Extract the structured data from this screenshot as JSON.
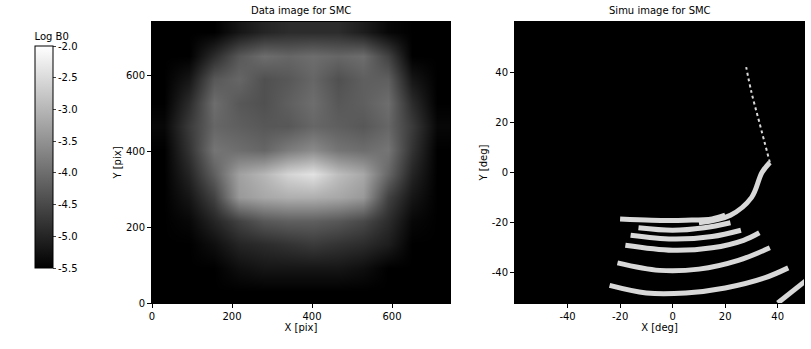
{
  "chart_data": [
    {
      "type": "heatmap",
      "title": "Data image for SMC",
      "x_label": "X [pix]",
      "y_label": "Y [pix]",
      "xlim": [
        0,
        745
      ],
      "ylim": [
        0,
        740
      ],
      "xticks": [
        0,
        200,
        400,
        600
      ],
      "yticks": [
        0,
        200,
        400,
        600
      ],
      "grid": false,
      "x": [
        31,
        93,
        155,
        217,
        279,
        341,
        403,
        465,
        527,
        589,
        651,
        713
      ],
      "y": [
        31,
        93,
        155,
        217,
        279,
        341,
        403,
        465,
        527,
        589,
        651,
        713
      ],
      "z": [
        [
          -5.5,
          -5.5,
          -5.5,
          -5.5,
          -5.5,
          -5.5,
          -5.5,
          -5.5,
          -5.5,
          -5.5,
          -5.5,
          -5.5
        ],
        [
          -5.5,
          -5.5,
          -5.5,
          -5.3,
          -5.2,
          -5.2,
          -5.2,
          -5.2,
          -5.3,
          -5.5,
          -5.5,
          -5.5
        ],
        [
          -5.5,
          -5.5,
          -5.3,
          -5.0,
          -4.9,
          -4.8,
          -4.7,
          -4.8,
          -4.9,
          -5.1,
          -5.5,
          -5.5
        ],
        [
          -5.5,
          -5.4,
          -5.0,
          -4.6,
          -4.3,
          -4.2,
          -4.2,
          -4.3,
          -4.5,
          -4.9,
          -5.4,
          -5.5
        ],
        [
          -5.5,
          -5.2,
          -4.6,
          -3.4,
          -3.2,
          -3.1,
          -3.1,
          -3.2,
          -3.4,
          -4.6,
          -5.2,
          -5.5
        ],
        [
          -5.5,
          -5.0,
          -4.2,
          -3.3,
          -3.0,
          -2.6,
          -2.4,
          -2.9,
          -3.2,
          -4.1,
          -5.0,
          -5.5
        ],
        [
          -5.5,
          -4.8,
          -3.9,
          -4.0,
          -4.1,
          -3.8,
          -3.6,
          -3.9,
          -4.0,
          -3.9,
          -4.8,
          -5.5
        ],
        [
          -5.4,
          -4.7,
          -4.1,
          -4.2,
          -4.3,
          -4.3,
          -4.1,
          -4.2,
          -4.3,
          -4.1,
          -4.7,
          -5.4
        ],
        [
          -5.5,
          -4.9,
          -4.0,
          -4.3,
          -4.4,
          -4.2,
          -4.0,
          -4.3,
          -4.2,
          -4.0,
          -4.9,
          -5.5
        ],
        [
          -5.5,
          -5.2,
          -4.3,
          -4.1,
          -4.4,
          -4.3,
          -4.1,
          -4.4,
          -4.2,
          -4.2,
          -5.2,
          -5.5
        ],
        [
          -5.5,
          -5.5,
          -4.9,
          -4.3,
          -4.0,
          -4.1,
          -4.0,
          -4.1,
          -4.0,
          -4.6,
          -5.5,
          -5.5
        ],
        [
          -5.5,
          -5.5,
          -5.5,
          -5.2,
          -5.0,
          -4.9,
          -4.9,
          -4.9,
          -5.1,
          -5.4,
          -5.5,
          -5.5
        ]
      ],
      "colorbar": {
        "title": "Log B0",
        "range": [
          -5.5,
          -2.0
        ],
        "ticks": [
          {
            "value": -2.0,
            "label": "-2.0"
          },
          -2.5,
          {
            "value": -3.0,
            "label": "-3.0"
          },
          -3.5,
          {
            "value": -4.0,
            "label": "-4.0"
          },
          -4.5,
          {
            "value": -5.0,
            "label": "-5.0"
          },
          -5.5
        ]
      }
    },
    {
      "type": "line",
      "title": "Simu image for SMC",
      "x_label": "X [deg]",
      "y_label": "Y [deg]",
      "xlim": [
        -60,
        50
      ],
      "ylim": [
        -52,
        60
      ],
      "xticks": [
        -40,
        -20,
        0,
        20,
        40
      ],
      "yticks": [
        -40,
        -20,
        0,
        20,
        40
      ],
      "grid": false,
      "color": "#d9d9d9",
      "series": [
        {
          "x": [
            -24,
            -10,
            5,
            20,
            35,
            44
          ],
          "values": [
            -45,
            -48,
            -48,
            -46,
            -42,
            -38
          ]
        },
        {
          "x": [
            -21,
            -5,
            10,
            25,
            37
          ],
          "values": [
            -36,
            -39,
            -38.5,
            -35,
            -30
          ]
        },
        {
          "x": [
            -18,
            0,
            15,
            27,
            33
          ],
          "values": [
            -29,
            -31,
            -30,
            -27,
            -24
          ]
        },
        {
          "x": [
            -16,
            0,
            15,
            26
          ],
          "values": [
            -25,
            -26.5,
            -25.5,
            -23
          ]
        },
        {
          "x": [
            -13,
            0,
            12,
            22
          ],
          "values": [
            -22,
            -23,
            -22,
            -20
          ]
        },
        {
          "x": [
            -20,
            -8,
            5,
            15,
            20
          ],
          "values": [
            -18.5,
            -19,
            -19,
            -18.5,
            -17
          ]
        },
        {
          "x": [
            10,
            22,
            30,
            34,
            37
          ],
          "values": [
            -20,
            -17,
            -10,
            0,
            4
          ]
        },
        {
          "x": [
            37,
            33,
            30,
            28
          ],
          "values": [
            4,
            20,
            32,
            42
          ],
          "line_style": "dotted"
        },
        {
          "x": [
            40,
            52
          ],
          "values": [
            -52,
            -42
          ]
        }
      ]
    }
  ]
}
